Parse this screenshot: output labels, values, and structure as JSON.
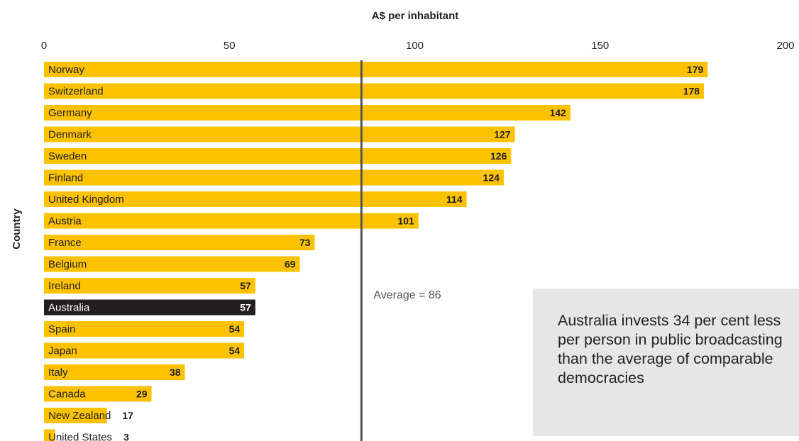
{
  "chart_data": {
    "type": "bar",
    "orientation": "horizontal",
    "xlabel": "A$ per inhabitant",
    "ylabel": "Country",
    "xlim": [
      0,
      200
    ],
    "xticks": [
      0,
      50,
      100,
      150,
      200
    ],
    "categories": [
      "Norway",
      "Switzerland",
      "Germany",
      "Denmark",
      "Sweden",
      "Finland",
      "United Kingdom",
      "Austria",
      "France",
      "Belgium",
      "Ireland",
      "Australia",
      "Spain",
      "Japan",
      "Italy",
      "Canada",
      "New Zealand",
      "United States"
    ],
    "values": [
      179,
      178,
      142,
      127,
      126,
      124,
      114,
      101,
      73,
      69,
      57,
      57,
      54,
      54,
      38,
      29,
      17,
      3
    ],
    "highlight": "Australia",
    "average": {
      "value": 86,
      "label": "Average = 86"
    },
    "colors": {
      "bar": "#fcc200",
      "highlight": "#231f20",
      "average_line": "#555555",
      "note_bg": "#e6e6e6"
    }
  },
  "note": "Australia invests 34 per cent less per person in public broadcasting than the average of comparable democracies"
}
